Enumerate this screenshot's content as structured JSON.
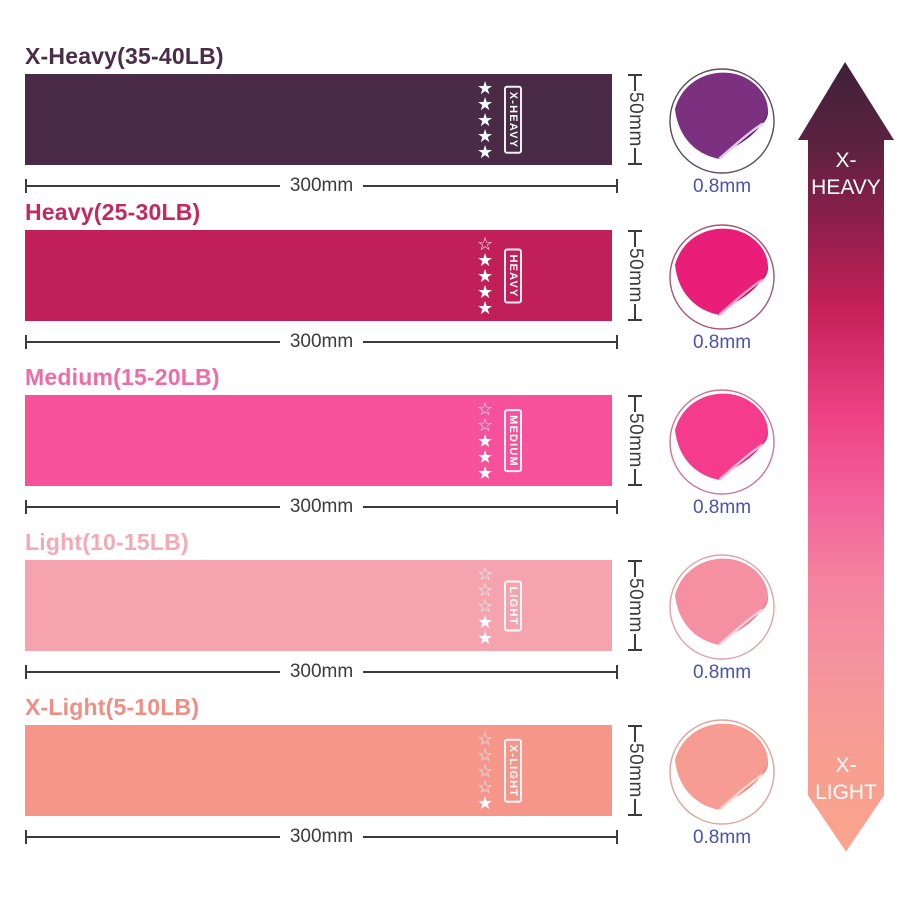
{
  "dimension_color": "#3b3b3b",
  "thickness_color": "#4a52ac",
  "star_color": "#ffffff",
  "rows": [
    {
      "title": "X-Heavy(35-40LB)",
      "title_color": "#4c2d49",
      "band_color": "#4a2b47",
      "band_label": "X-HEAVY",
      "stars_hollow": 0,
      "stars_filled": 5,
      "width_label": "300mm",
      "height_label": "50mm",
      "thickness": "0.8mm",
      "art": {
        "main": "#7b3080",
        "dark": "#541c5d",
        "edge": "#e9c7ec",
        "ring": "#5f4a5c"
      }
    },
    {
      "title": "Heavy(25-30LB)",
      "title_color": "#c3295e",
      "band_color": "#c11f58",
      "band_label": "HEAVY",
      "stars_hollow": 1,
      "stars_filled": 4,
      "width_label": "300mm",
      "height_label": "50mm",
      "thickness": "0.8mm",
      "art": {
        "main": "#e81e78",
        "dark": "#c00d60",
        "edge": "#ff9cc6",
        "ring": "#a75570"
      }
    },
    {
      "title": "Medium(15-20LB)",
      "title_color": "#ee6ca7",
      "band_color": "#f6519a",
      "band_label": "MEDIUM",
      "stars_hollow": 2,
      "stars_filled": 3,
      "width_label": "300mm",
      "height_label": "50mm",
      "thickness": "0.8mm",
      "art": {
        "main": "#f43b8c",
        "dark": "#de2178",
        "edge": "#ffb5d6",
        "ring": "#cd7791"
      }
    },
    {
      "title": "Light(10-15LB)",
      "title_color": "#f3a9b6",
      "band_color": "#f4a3af",
      "band_label": "LIGHT",
      "stars_hollow": 3,
      "stars_filled": 2,
      "width_label": "300mm",
      "height_label": "50mm",
      "thickness": "0.8mm",
      "art": {
        "main": "#f590a2",
        "dark": "#ec7088",
        "edge": "#ffd2da",
        "ring": "#dda3ab"
      }
    },
    {
      "title": "X-Light(5-10LB)",
      "title_color": "#ef8e84",
      "band_color": "#f6968b",
      "band_label": "X-LIGHT",
      "stars_hollow": 4,
      "stars_filled": 1,
      "width_label": "300mm",
      "height_label": "50mm",
      "thickness": "0.8mm",
      "art": {
        "main": "#f79c92",
        "dark": "#ef7f78",
        "edge": "#ffd6cd",
        "ring": "#dfa49b"
      }
    }
  ],
  "arrow": {
    "top_line1": "X-",
    "top_line2": "HEAVY",
    "bottom_line1": "X-",
    "bottom_line2": "LIGHT",
    "text_color": "#ffffff",
    "gradient": [
      {
        "c": "#3f2039",
        "p": 0
      },
      {
        "c": "#5a2240",
        "p": 10
      },
      {
        "c": "#8c1f4b",
        "p": 20
      },
      {
        "c": "#c52057",
        "p": 31
      },
      {
        "c": "#ee4386",
        "p": 45
      },
      {
        "c": "#f2619b",
        "p": 55
      },
      {
        "c": "#f4849f",
        "p": 66
      },
      {
        "c": "#f5929f",
        "p": 75
      },
      {
        "c": "#f79d92",
        "p": 86
      },
      {
        "c": "#f9a58d",
        "p": 100
      }
    ]
  }
}
